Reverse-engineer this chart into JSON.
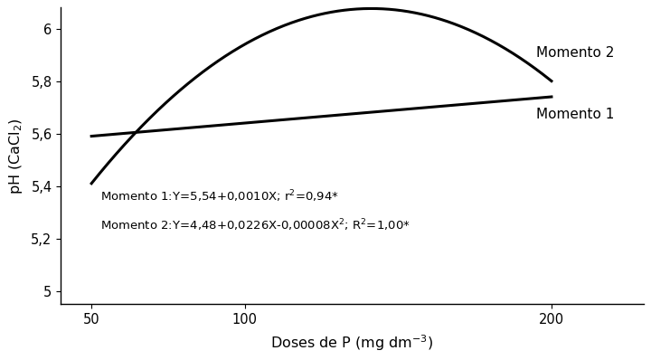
{
  "x_ticks": [
    50,
    100,
    200
  ],
  "y_ticks": [
    5.0,
    5.2,
    5.4,
    5.6,
    5.8,
    6.0
  ],
  "y_tick_labels": [
    "5",
    "5,2",
    "5,4",
    "5,6",
    "5,8",
    "6"
  ],
  "xlabel": "Doses de P (mg dm$^{-3}$)",
  "ylabel": "pH (CaCl$_2$)",
  "label1": "Momento 1",
  "label2": "Momento 2",
  "line_color": "#000000",
  "bg_color": "#ffffff",
  "eq_fontsize": 9.5,
  "tick_label_fontsize": 10.5,
  "axis_label_fontsize": 11.5,
  "curve_label_fontsize": 11,
  "xlim_left": 40,
  "xlim_right": 230,
  "ylim_bottom": 4.95,
  "ylim_top": 6.08
}
